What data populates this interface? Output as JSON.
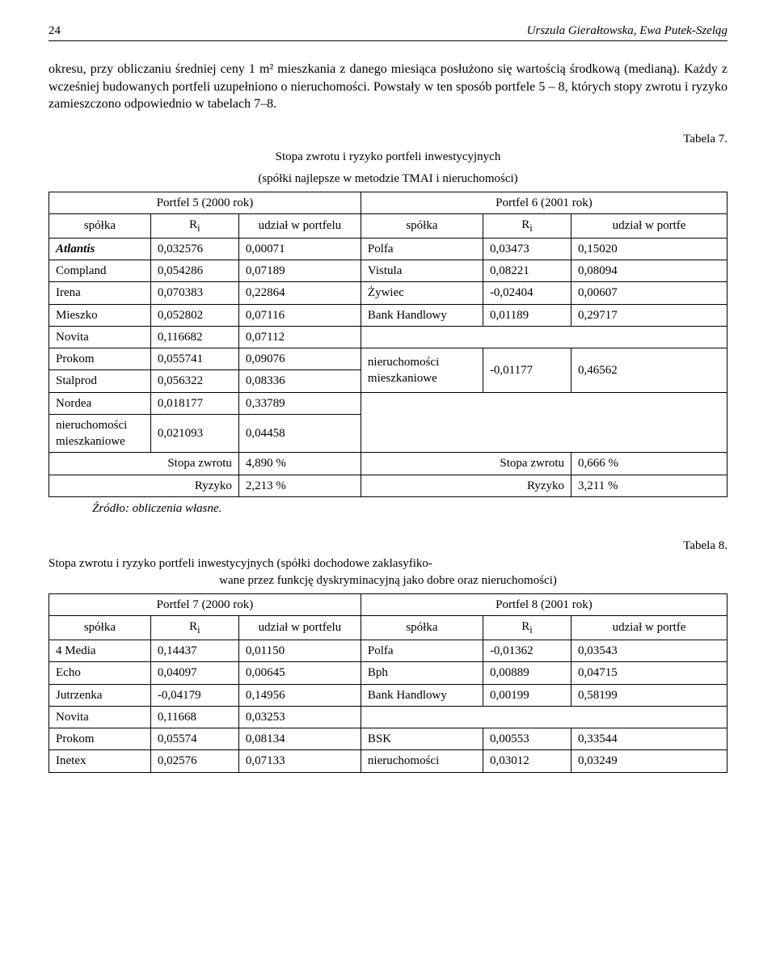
{
  "header": {
    "page": "24",
    "authors": "Urszula Gierałtowska, Ewa Putek-Szeląg"
  },
  "paragraph": "okresu, przy obliczaniu średniej ceny 1 m² mieszkania z danego miesiąca posłużono się wartością środkową (medianą). Każdy z wcześniej budowanych portfeli uzupełniono o nieruchomości. Powstały w ten sposób portfele 5 – 8, których stopy zwrotu i ryzyko zamieszczono odpowiednio w tabelach 7–8.",
  "table7": {
    "label": "Tabela 7.",
    "title1": "Stopa zwrotu i ryzyko portfeli inwestycyjnych",
    "title2": "(spółki najlepsze w metodzie TMAI i nieruchomości)",
    "hdrLeft": "Portfel 5 (2000 rok)",
    "hdrRight": "Portfel 6 (2001 rok)",
    "sub": {
      "spolka": "spółka",
      "ri": "R",
      "risub": "i",
      "udzial": "udział w portfelu",
      "spolka2": "spółka",
      "ri2": "R",
      "risub2": "i",
      "udzial2": "udział w portfe"
    },
    "rows": [
      {
        "l": [
          "Atlantis",
          "0,032576",
          "0,00071"
        ],
        "r": [
          "Polfa",
          "0,03473",
          "0,15020"
        ],
        "lItalBold": true
      },
      {
        "l": [
          "Compland",
          "0,054286",
          "0,07189"
        ],
        "r": [
          "Vistula",
          "0,08221",
          "0,08094"
        ]
      },
      {
        "l": [
          "Irena",
          "0,070383",
          "0,22864"
        ],
        "r": [
          "Żywiec",
          "-0,02404",
          "0,00607"
        ]
      },
      {
        "l": [
          "Mieszko",
          "0,052802",
          "0,07116"
        ],
        "r": [
          "Bank Handlowy",
          "0,01189",
          "0,29717"
        ]
      },
      {
        "l": [
          "Novita",
          "0,116682",
          "0,07112"
        ],
        "r": null
      },
      {
        "l": [
          "Prokom",
          "0,055741",
          "0,09076"
        ],
        "r": [
          "nieruchomości",
          "-0,01177",
          "0,46562"
        ],
        "rMerge": true
      },
      {
        "l": [
          "Stalprod",
          "0,056322",
          "0,08336"
        ],
        "rMLabel": "mieszkaniowe"
      },
      {
        "l": [
          "Nordea",
          "0,018177",
          "0,33789"
        ]
      },
      {
        "l": [
          "nieruchomości",
          "0,021093",
          "0,04458"
        ]
      },
      {
        "lMLabel": "mieszkaniowe"
      }
    ],
    "stopaL": [
      "Stopa zwrotu",
      "4,890 %"
    ],
    "stopaR": [
      "Stopa zwrotu",
      "0,666 %"
    ],
    "ryzL": [
      "Ryzyko",
      "2,213 %"
    ],
    "ryzR": [
      "Ryzyko",
      "3,211 %"
    ],
    "source": "Źródło: obliczenia własne."
  },
  "table8": {
    "label": "Tabela 8.",
    "title1": "Stopa zwrotu i ryzyko portfeli inwestycyjnych (spółki dochodowe zaklasyfiko-",
    "title2": "wane przez funkcję dyskryminacyjną jako dobre oraz nieruchomości)",
    "hdrLeft": "Portfel 7 (2000 rok)",
    "hdrRight": "Portfel 8 (2001 rok)",
    "sub": {
      "spolka": "spółka",
      "ri": "R",
      "risub": "i",
      "udzial": "udział w portfelu",
      "spolka2": "spółka",
      "ri2": "R",
      "risub2": "i",
      "udzial2": "udział w portfe"
    },
    "rows": [
      {
        "l": [
          "4 Media",
          "0,14437",
          "0,01150"
        ],
        "r": [
          "Polfa",
          "-0,01362",
          "0,03543"
        ]
      },
      {
        "l": [
          "Echo",
          "0,04097",
          "0,00645"
        ],
        "r": [
          "Bph",
          "0,00889",
          "0,04715"
        ]
      },
      {
        "l": [
          "Jutrzenka",
          "-0,04179",
          "0,14956"
        ],
        "r": [
          "Bank Handlowy",
          "0,00199",
          "0,58199"
        ]
      },
      {
        "l": [
          "Novita",
          "0,11668",
          "0,03253"
        ],
        "r": null
      },
      {
        "l": [
          "Prokom",
          "0,05574",
          "0,08134"
        ],
        "r": [
          "BSK",
          "0,00553",
          "0,33544"
        ]
      },
      {
        "l": [
          "Inetex",
          "0,02576",
          "0,07133"
        ],
        "r": [
          "nieruchomości",
          "0,03012",
          "0,03249"
        ]
      }
    ]
  }
}
